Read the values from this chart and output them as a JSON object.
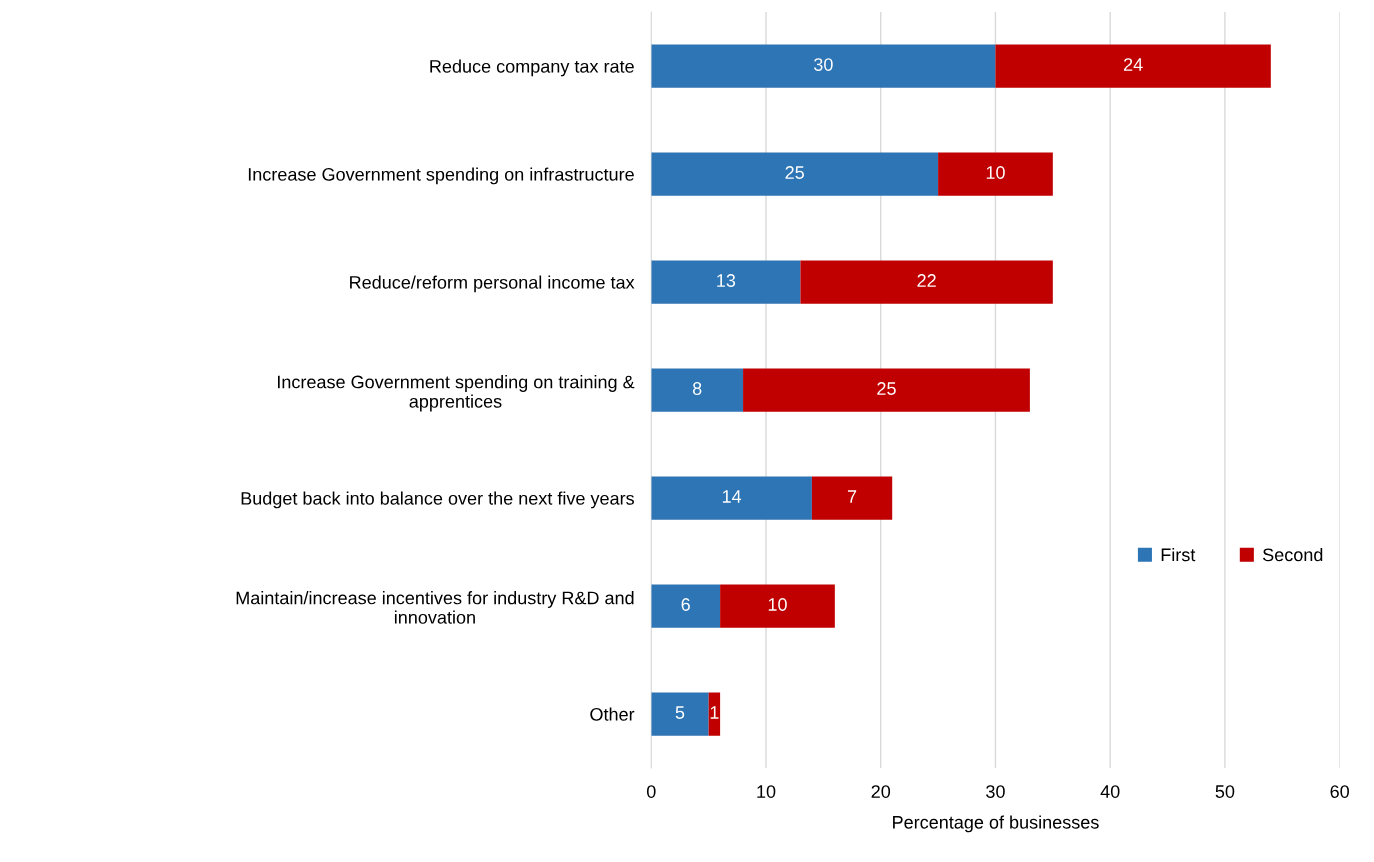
{
  "chart_data": {
    "type": "bar",
    "orientation": "horizontal",
    "stacked": true,
    "categories": [
      "Reduce company tax rate",
      "Increase Government spending on infrastructure",
      "Reduce/reform personal income tax",
      "Increase Government spending on training &\napprentices",
      "Budget back into balance over the next five years",
      "Maintain/increase incentives for industry R&D and\ninnovation",
      "Other"
    ],
    "series": [
      {
        "name": "First",
        "color": "#2e75b6",
        "values": [
          30,
          25,
          13,
          8,
          14,
          6,
          5
        ]
      },
      {
        "name": "Second",
        "color": "#c00000",
        "values": [
          24,
          10,
          22,
          25,
          7,
          10,
          1
        ]
      }
    ],
    "xlim": [
      0,
      60
    ],
    "xticks": [
      0,
      10,
      20,
      30,
      40,
      50,
      60
    ],
    "xlabel": "Percentage of businesses",
    "grid": "x",
    "legend": "right",
    "data_labels": true
  }
}
